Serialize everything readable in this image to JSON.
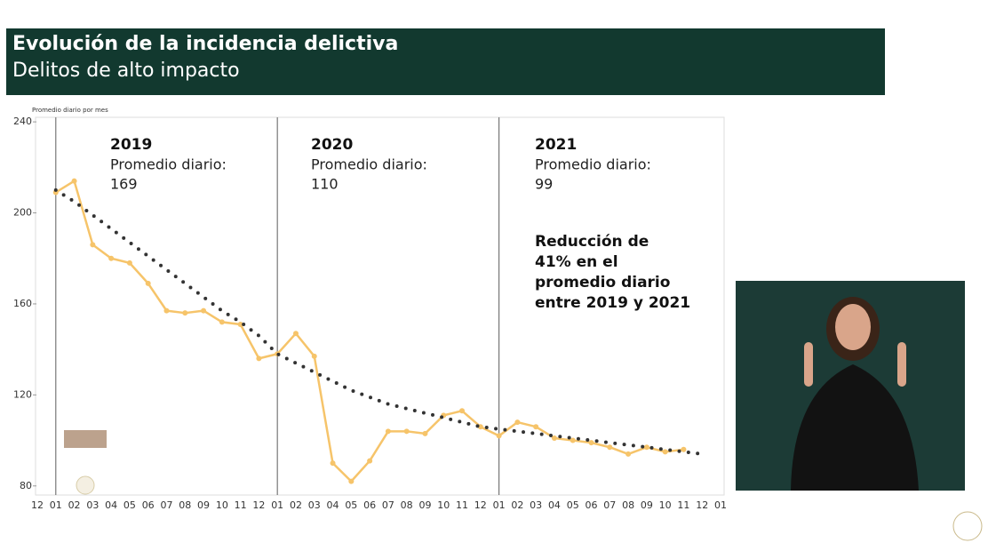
{
  "chart_data": {
    "type": "line",
    "title": "Evolución de la incidencia delictiva",
    "subtitle": "Delitos de alto impacto",
    "y_label": "Promedio diario por mes",
    "categories": [
      "12",
      "01",
      "02",
      "03",
      "04",
      "05",
      "06",
      "07",
      "08",
      "09",
      "10",
      "11",
      "12",
      "01",
      "02",
      "03",
      "04",
      "05",
      "06",
      "07",
      "08",
      "09",
      "10",
      "11",
      "12",
      "01",
      "02",
      "03",
      "04",
      "05",
      "06",
      "07",
      "08",
      "09",
      "10",
      "11",
      "12",
      "01"
    ],
    "series": [
      {
        "color": "#f6c46a",
        "style": "solid",
        "values": [
          null,
          209,
          214,
          186,
          180,
          178,
          169,
          157,
          156,
          157,
          152,
          151,
          136,
          138,
          147,
          137,
          90,
          82,
          91,
          104,
          104,
          103,
          111,
          113,
          106,
          102,
          108,
          106,
          101,
          100,
          99,
          97,
          94,
          97,
          95,
          96,
          null,
          null
        ]
      },
      {
        "color": "#333333",
        "style": "dotted",
        "values": [
          null,
          210,
          205,
          199,
          193,
          187,
          181,
          175,
          169,
          163,
          157,
          152,
          146,
          138,
          134,
          130,
          126,
          122,
          119,
          116,
          114,
          112,
          110,
          108,
          106,
          105,
          104,
          103,
          102,
          101,
          100,
          99,
          98,
          97,
          96,
          95,
          94,
          null
        ]
      }
    ],
    "ylim": [
      76,
      242
    ],
    "yticks": [
      80,
      120,
      160,
      200,
      240
    ],
    "annotations": [
      {
        "year": "2019",
        "label": "Promedio diario:",
        "value": 169
      },
      {
        "year": "2020",
        "label": "Promedio diario:",
        "value": 110
      },
      {
        "year": "2021",
        "label": "Promedio diario:",
        "value": 99
      }
    ],
    "note": [
      "Reducción de",
      "41% en el",
      "promedio diario",
      "entre 2019 y 2021"
    ]
  }
}
